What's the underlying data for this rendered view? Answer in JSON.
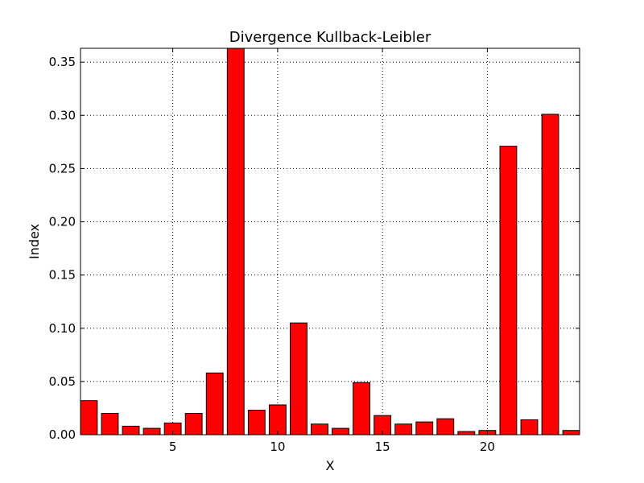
{
  "chart_data": {
    "type": "bar",
    "title": "Divergence Kullback-Leibler",
    "xlabel": "X",
    "ylabel": "Index",
    "x": [
      1,
      2,
      3,
      4,
      5,
      6,
      7,
      8,
      9,
      10,
      11,
      12,
      13,
      14,
      15,
      16,
      17,
      18,
      19,
      20,
      21,
      22,
      23,
      24
    ],
    "values": [
      0.032,
      0.02,
      0.008,
      0.006,
      0.011,
      0.02,
      0.058,
      0.363,
      0.023,
      0.028,
      0.105,
      0.01,
      0.006,
      0.049,
      0.018,
      0.01,
      0.012,
      0.015,
      0.003,
      0.004,
      0.271,
      0.014,
      0.301,
      0.004
    ],
    "xlim": [
      0.6,
      24.4
    ],
    "ylim": [
      0,
      0.363
    ],
    "xticks": [
      5,
      10,
      15,
      20
    ],
    "xtick_labels": [
      "5",
      "10",
      "15",
      "20"
    ],
    "yticks": [
      0.0,
      0.05,
      0.1,
      0.15,
      0.2,
      0.25,
      0.3,
      0.35
    ],
    "ytick_labels": [
      "0.00",
      "0.05",
      "0.10",
      "0.15",
      "0.20",
      "0.25",
      "0.30",
      "0.35"
    ],
    "grid": true,
    "bar_color": "#ff0000",
    "edge_color": "#000000"
  }
}
